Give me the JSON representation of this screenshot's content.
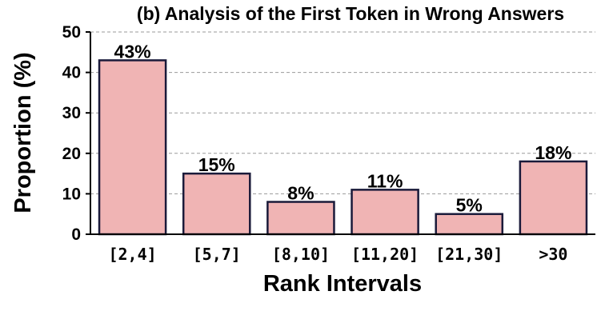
{
  "chart_data": {
    "type": "bar",
    "title": "(b) Analysis of the First Token in Wrong Answers",
    "xlabel": "Rank Intervals",
    "ylabel": "Proportion (%)",
    "categories": [
      "[2,4]",
      "[5,7]",
      "[8,10]",
      "[11,20]",
      "[21,30]",
      ">30"
    ],
    "values": [
      43,
      15,
      8,
      11,
      5,
      18
    ],
    "data_labels": [
      "43%",
      "15%",
      "8%",
      "11%",
      "5%",
      "18%"
    ],
    "yticks": [
      "0",
      "10",
      "20",
      "30",
      "40",
      "50"
    ],
    "ylim": [
      0,
      50
    ],
    "grid": "horizontal-dashed",
    "colors": {
      "bar_fill": "#f0b4b4",
      "bar_edge": "#1a1a3a",
      "grid": "#9a9a9a",
      "axis": "#000000"
    }
  }
}
